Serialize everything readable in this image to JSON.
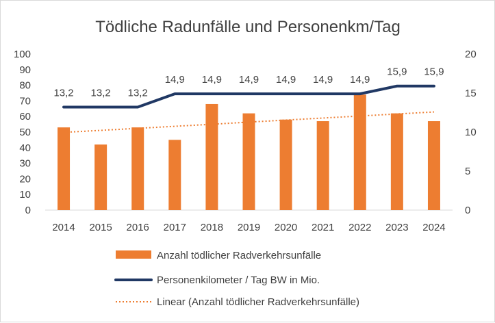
{
  "chart_data": {
    "type": "bar",
    "title": "Tödliche Radunfälle und Personenkm/Tag",
    "categories": [
      "2014",
      "2015",
      "2016",
      "2017",
      "2018",
      "2019",
      "2020",
      "2021",
      "2022",
      "2023",
      "2024"
    ],
    "series": [
      {
        "name": "Anzahl tödlicher Radverkehrsunfälle",
        "type": "bar",
        "axis": "left",
        "color": "#ed7d31",
        "values": [
          53,
          42,
          53,
          45,
          68,
          62,
          58,
          57,
          74,
          62,
          57
        ]
      },
      {
        "name": "Personenkilometer / Tag BW in Mio.",
        "type": "line",
        "axis": "right",
        "color": "#203864",
        "values": [
          13.2,
          13.2,
          13.2,
          14.9,
          14.9,
          14.9,
          14.9,
          14.9,
          14.9,
          15.9,
          15.9
        ],
        "labels": [
          "13,2",
          "13,2",
          "13,2",
          "14,9",
          "14,9",
          "14,9",
          "14,9",
          "14,9",
          "14,9",
          "15,9",
          "15,9"
        ]
      },
      {
        "name": "Linear (Anzahl tödlicher Radverkehrsunfälle)",
        "type": "trendline",
        "axis": "left",
        "color": "#ed7d31",
        "values": [
          49.8,
          51.1,
          52.4,
          53.7,
          55.0,
          56.4,
          57.7,
          59.0,
          60.3,
          61.6,
          62.9
        ]
      }
    ],
    "left_axis": {
      "min": 0,
      "max": 100,
      "ticks": [
        "0",
        "10",
        "20",
        "30",
        "40",
        "50",
        "60",
        "70",
        "80",
        "90",
        "100"
      ]
    },
    "right_axis": {
      "min": 0,
      "max": 20,
      "ticks": [
        "0",
        "5",
        "10",
        "15",
        "20"
      ]
    },
    "grid": false,
    "legend_position": "bottom"
  }
}
